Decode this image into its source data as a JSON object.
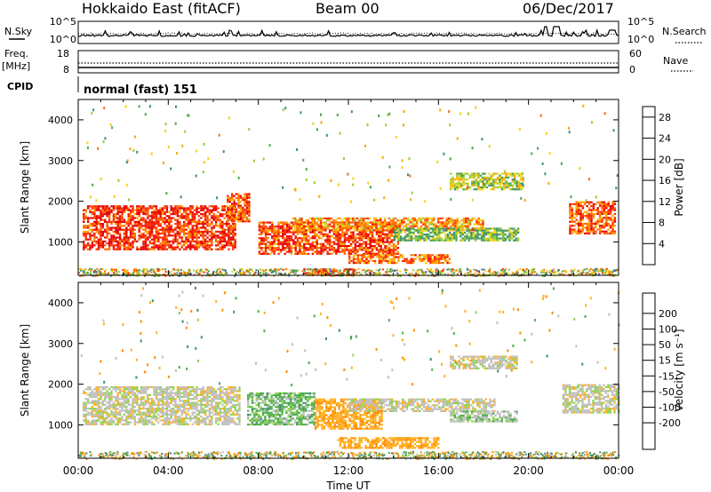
{
  "header": {
    "title": "Hokkaido East (fitACF)",
    "beam": "Beam 00",
    "date": "06/Dec/2017"
  },
  "noise_panel": {
    "left_label": "N.Sky",
    "right_label": "N.Search",
    "ticks_left": [
      "10^5",
      "10^0"
    ],
    "ticks_right": [
      "10^5",
      "10^0"
    ]
  },
  "freq_panel": {
    "left_label": "Freq.",
    "left_unit": "[MHz]",
    "right_label": "Nave",
    "ticks_left": [
      "18",
      "8"
    ],
    "ticks_right": [
      "60",
      "0"
    ]
  },
  "cpid": {
    "label": "CPID",
    "mode": "normal (fast) 151"
  },
  "axes": {
    "y_label": "Slant Range [km]",
    "x_label": "Time UT",
    "x_ticks": [
      "00:00",
      "04:00",
      "08:00",
      "12:00",
      "16:00",
      "20:00",
      "00:00"
    ],
    "y_ticks": [
      "1000",
      "2000",
      "3000",
      "4000"
    ]
  },
  "power_scale": {
    "label": "Power [dB]",
    "ticks": [
      "4",
      "8",
      "12",
      "16",
      "20",
      "24",
      "28"
    ],
    "colors": [
      "#1a1aff",
      "#3a5aa8",
      "#3f8f6f",
      "#4ca64c",
      "#9acd32",
      "#f2d21a",
      "#ffa500",
      "#ff6a00",
      "#ff2a00",
      "#e60000"
    ]
  },
  "velocity_scale": {
    "label": "Velocity [m s⁻¹]",
    "ticks": [
      "200",
      "100",
      "50",
      "15",
      "-15",
      "-50",
      "-100",
      "-200"
    ],
    "colors": [
      "#2a3ab8",
      "#3a5aa8",
      "#3f8f6f",
      "#4caf4c",
      "#8fd34a",
      "#bfbfbf",
      "#ffb020",
      "#ff8c00",
      "#ff5500",
      "#e60000"
    ]
  },
  "chart_data": {
    "type": "heatmap",
    "x_range_hours": [
      0,
      24
    ],
    "y_range_km": [
      180,
      4500
    ],
    "power_range_db": [
      0,
      30
    ],
    "velocity_range_ms": [
      -250,
      250
    ],
    "power_regions": [
      {
        "t": [
          0.2,
          7.0
        ],
        "r": [
          800,
          1900
        ],
        "level": 26
      },
      {
        "t": [
          6.6,
          7.6
        ],
        "r": [
          1500,
          2200
        ],
        "level": 24
      },
      {
        "t": [
          8.0,
          14.2
        ],
        "r": [
          700,
          1500
        ],
        "level": 25
      },
      {
        "t": [
          10.0,
          12.2
        ],
        "r": [
          200,
          350
        ],
        "level": 24
      },
      {
        "t": [
          9.5,
          18.0
        ],
        "r": [
          1300,
          1600
        ],
        "level": 20
      },
      {
        "t": [
          12.0,
          16.5
        ],
        "r": [
          500,
          700
        ],
        "level": 22
      },
      {
        "t": [
          14.0,
          19.5
        ],
        "r": [
          1050,
          1350
        ],
        "level": 12
      },
      {
        "t": [
          16.5,
          19.8
        ],
        "r": [
          2300,
          2700
        ],
        "level": 14
      },
      {
        "t": [
          21.8,
          23.8
        ],
        "r": [
          1200,
          2000
        ],
        "level": 24
      }
    ],
    "velocity_regions": [
      {
        "t": [
          0.2,
          7.2
        ],
        "r": [
          1000,
          1950
        ],
        "v": 0
      },
      {
        "t": [
          7.5,
          10.5
        ],
        "r": [
          1000,
          1800
        ],
        "v": 30
      },
      {
        "t": [
          10.5,
          13.5
        ],
        "r": [
          900,
          1650
        ],
        "v": -40
      },
      {
        "t": [
          12.0,
          18.5
        ],
        "r": [
          1350,
          1650
        ],
        "v": 0
      },
      {
        "t": [
          11.5,
          16.0
        ],
        "r": [
          450,
          700
        ],
        "v": -40
      },
      {
        "t": [
          16.5,
          19.5
        ],
        "r": [
          1100,
          1350
        ],
        "v": 10
      },
      {
        "t": [
          16.5,
          19.5
        ],
        "r": [
          2400,
          2700
        ],
        "v": 0
      },
      {
        "t": [
          21.5,
          24.0
        ],
        "r": [
          1300,
          2000
        ],
        "v": 0
      }
    ]
  }
}
